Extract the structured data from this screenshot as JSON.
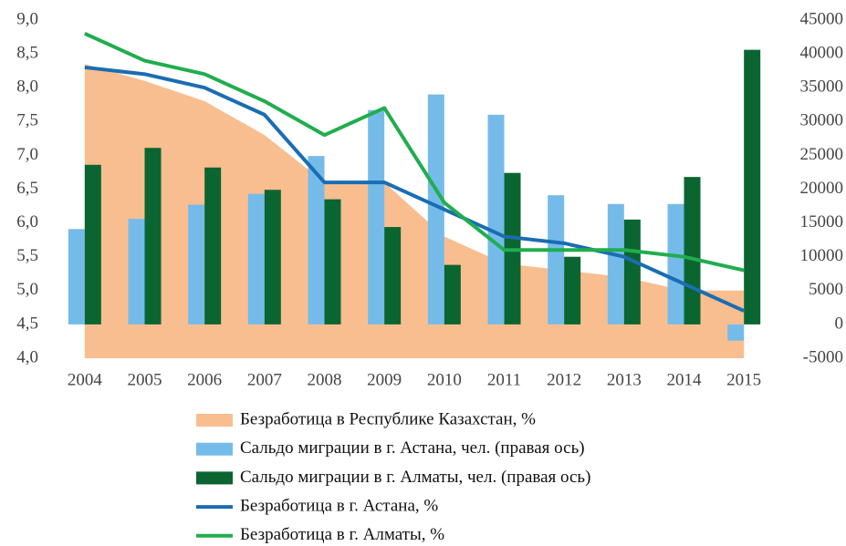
{
  "chart_data": {
    "type": "combo",
    "categories": [
      "2004",
      "2005",
      "2006",
      "2007",
      "2008",
      "2009",
      "2010",
      "2011",
      "2012",
      "2013",
      "2014",
      "2015"
    ],
    "series": [
      {
        "name": "Безработица в Республике Казахстан, %",
        "type": "area",
        "color": "#f9be8f",
        "values": [
          8.35,
          8.1,
          7.8,
          7.3,
          6.6,
          6.6,
          5.8,
          5.4,
          5.3,
          5.2,
          5.0,
          5.0
        ]
      },
      {
        "name": "Сальдо миграции в г. Астана, чел. (правая ось)",
        "type": "bar",
        "axis": "y2",
        "color": "#75bbea",
        "values": [
          14100,
          15600,
          17700,
          19300,
          24900,
          31700,
          34000,
          31000,
          19100,
          17800,
          17800,
          -2400
        ]
      },
      {
        "name": "Сальдо миграции в г. Алматы, чел. (правая ось)",
        "type": "bar",
        "axis": "y2",
        "color": "#0b6531",
        "values": [
          23600,
          26100,
          23200,
          19900,
          18500,
          14400,
          8800,
          22400,
          10000,
          15500,
          21800,
          40600
        ]
      },
      {
        "name": "Безработица в г. Астана, %",
        "type": "line",
        "color": "#1a6db3",
        "values": [
          8.3,
          8.2,
          8.0,
          7.6,
          6.6,
          6.6,
          6.2,
          5.8,
          5.7,
          5.5,
          5.1,
          4.7
        ]
      },
      {
        "name": "Безработица в г. Алматы, %",
        "type": "line",
        "color": "#21ad4e",
        "values": [
          8.8,
          8.4,
          8.2,
          7.8,
          7.3,
          7.7,
          6.3,
          5.6,
          5.6,
          5.6,
          5.5,
          5.3
        ]
      }
    ],
    "ylim": [
      4.0,
      9.0
    ],
    "yticks": [
      {
        "value": 4.0,
        "label": "4,0"
      },
      {
        "value": 4.5,
        "label": "4,5"
      },
      {
        "value": 5.0,
        "label": "5,0"
      },
      {
        "value": 5.5,
        "label": "5,5"
      },
      {
        "value": 6.0,
        "label": "6,0"
      },
      {
        "value": 6.5,
        "label": "6,5"
      },
      {
        "value": 7.0,
        "label": "7,0"
      },
      {
        "value": 7.5,
        "label": "7,5"
      },
      {
        "value": 8.0,
        "label": "8,0"
      },
      {
        "value": 8.5,
        "label": "8,5"
      },
      {
        "value": 9.0,
        "label": "9,0"
      }
    ],
    "y2lim": [
      -5000,
      45000
    ],
    "y2ticks": [
      -5000,
      0,
      5000,
      10000,
      15000,
      20000,
      25000,
      30000,
      35000,
      40000,
      45000
    ],
    "grid": false
  }
}
